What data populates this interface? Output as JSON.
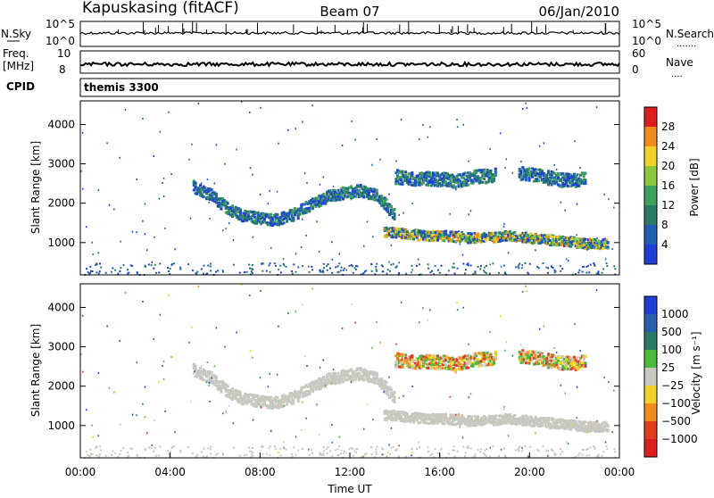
{
  "header": {
    "station": "Kapuskasing (fitACF)",
    "beam": "Beam 07",
    "date": "06/Jan/2010"
  },
  "param_labels": {
    "nsky": "N.Sky",
    "freq_top": "Freq.",
    "freq_unit": "[MHz]",
    "cpid": "CPID",
    "nsearch": "N.Search",
    "nsearch_dots": ".......",
    "nave": "Nave",
    "nave_dots": "....",
    "noise_top": "10^5",
    "noise_bottom": "10^0",
    "freq_axis_top": "10",
    "freq_axis_bottom": "8",
    "nave_axis_top": "60",
    "nave_axis_bottom": "0",
    "cpid_text": "themis 3300"
  },
  "colors": {
    "power": [
      "#1f3fd4",
      "#1f5fb4",
      "#2b7a66",
      "#3ea05a",
      "#8cc83c",
      "#f0d228",
      "#f08c1e",
      "#dc1e1e"
    ],
    "velocity": [
      "#1f3fd4",
      "#2a5fb0",
      "#2b7a66",
      "#4cbb3c",
      "#c8c8c0",
      "#f0d228",
      "#f08c1e",
      "#e03c1e",
      "#dc1e1e"
    ],
    "ground_scatter": "#c8c8c0",
    "noise_line": "#000000"
  },
  "chart_data": [
    {
      "type": "heatmap",
      "panel": "power",
      "xlabel": "",
      "ylabel": "Slant Range [km]",
      "xlim": [
        0,
        24
      ],
      "ylim": [
        180,
        4600
      ],
      "yticks": [
        1000,
        2000,
        3000,
        4000
      ],
      "colorbar": {
        "label": "Power [dB]",
        "ticks": [
          "4",
          "8",
          "12",
          "16",
          "20",
          "24",
          "28"
        ]
      },
      "scatter_regions": [
        {
          "hours": [
            5.0,
            14.0
          ],
          "range_center": [
            2450,
            2250,
            1900,
            1700,
            1650,
            1600,
            1750,
            2000,
            2200,
            2300,
            2350,
            2200,
            1700
          ],
          "thickness": 300
        },
        {
          "hours": [
            13.5,
            23.5
          ],
          "range_center": [
            1300,
            1250,
            1200,
            1200,
            1150,
            1150,
            1200,
            1150,
            1100,
            1050,
            1000,
            1000
          ],
          "thickness": 250
        },
        {
          "hours": [
            14.0,
            18.5
          ],
          "range_center": [
            2700,
            2650,
            2650,
            2600,
            2700,
            2750
          ],
          "thickness": 350
        },
        {
          "hours": [
            19.5,
            22.5
          ],
          "range_center": [
            2800,
            2750,
            2650,
            2600,
            2650
          ],
          "thickness": 350
        }
      ]
    },
    {
      "type": "heatmap",
      "panel": "velocity",
      "xlabel": "Time UT",
      "ylabel": "Slant Range [km]",
      "xlim": [
        0,
        24
      ],
      "ylim": [
        180,
        4600
      ],
      "xticks": [
        "00:00",
        "04:00",
        "08:00",
        "12:00",
        "16:00",
        "20:00",
        "00:00"
      ],
      "yticks": [
        1000,
        2000,
        3000,
        4000
      ],
      "colorbar": {
        "label": "Velocity [m s⁻¹]",
        "ticks": [
          "1000",
          "500",
          "100",
          "25",
          "−25",
          "−100",
          "−500",
          "−1000"
        ]
      }
    }
  ]
}
